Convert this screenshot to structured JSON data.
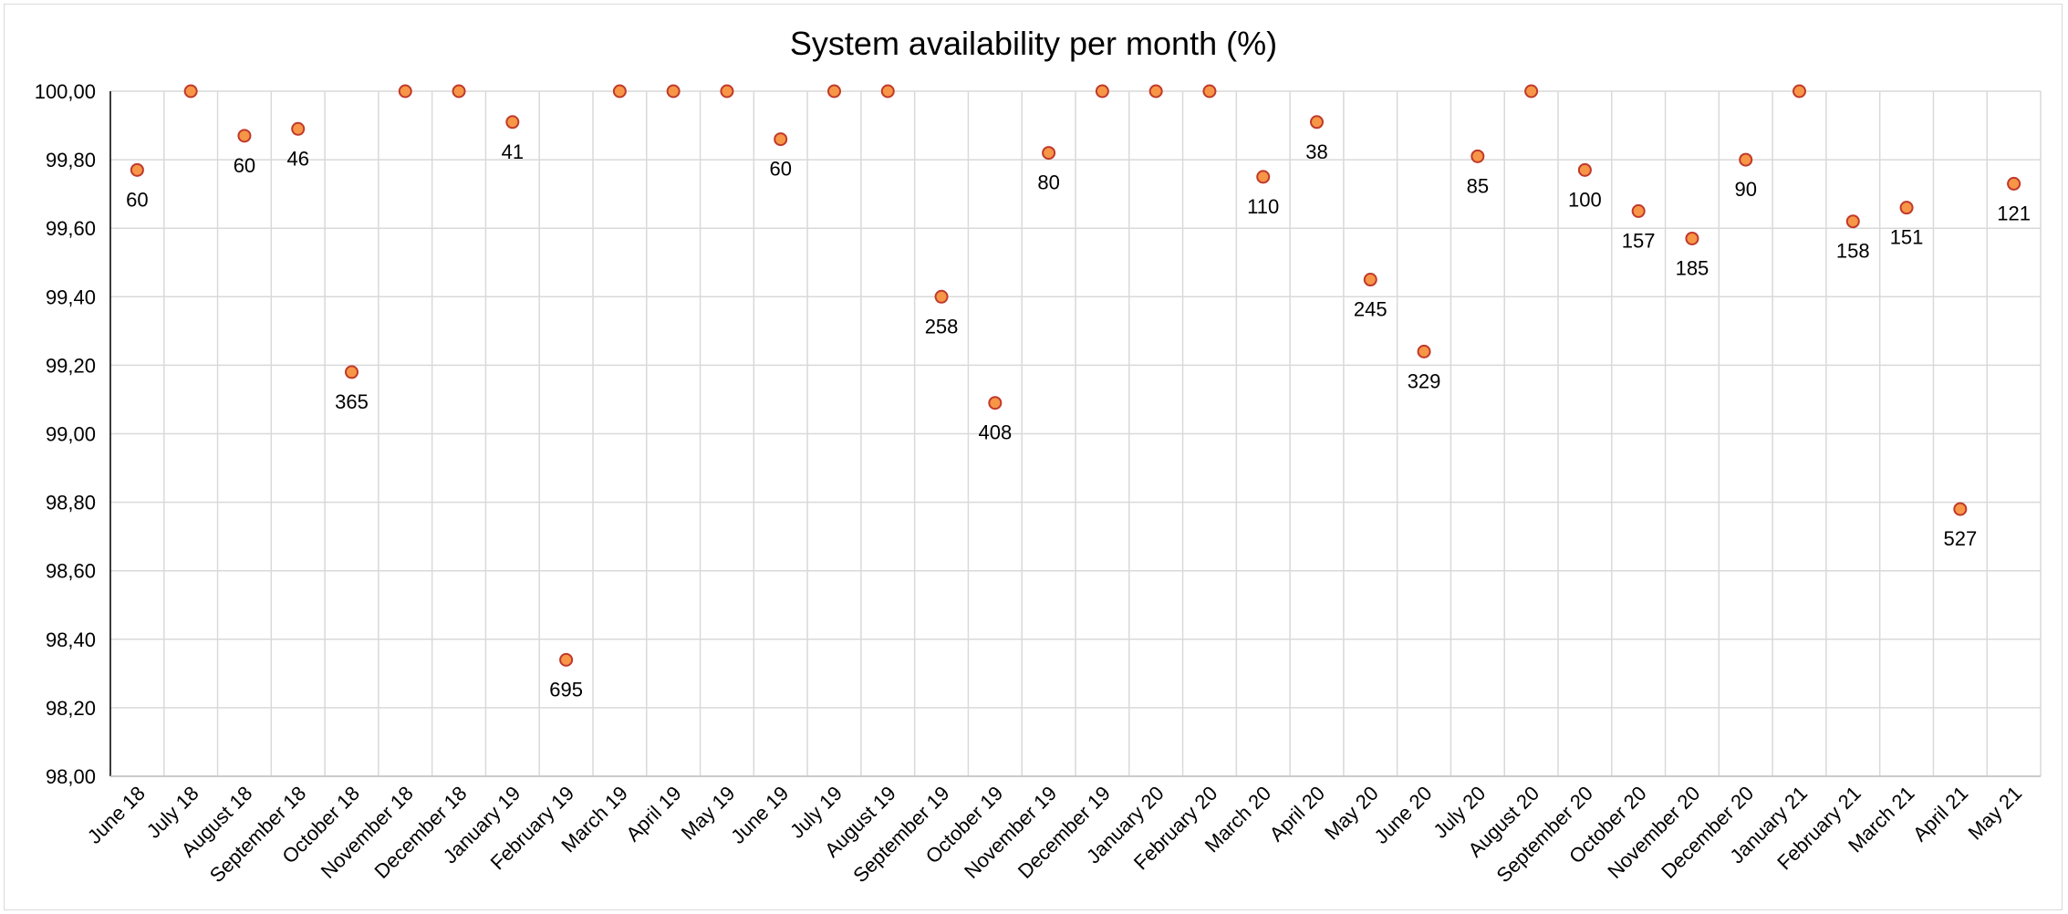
{
  "chart_data": {
    "type": "scatter",
    "title": "System availability per month (%)",
    "xlabel": "",
    "ylabel": "",
    "ylim": [
      98.0,
      100.0
    ],
    "ytick_step": 0.2,
    "ytick_labels": [
      "98,00",
      "98,20",
      "98,40",
      "98,60",
      "98,80",
      "99,00",
      "99,20",
      "99,40",
      "99,60",
      "99,80",
      "100,00"
    ],
    "grid": true,
    "legend": "none",
    "marker_fill": "#f79646",
    "marker_edge": "#c0392b",
    "categories": [
      "June 18",
      "July 18",
      "August 18",
      "September 18",
      "October 18",
      "November 18",
      "December 18",
      "January 19",
      "February 19",
      "March 19",
      "April 19",
      "May 19",
      "June 19",
      "July 19",
      "August 19",
      "September 19",
      "October 19",
      "November 19",
      "December 19",
      "January 20",
      "February 20",
      "March 20",
      "April 20",
      "May 20",
      "June 20",
      "July 20",
      "August 20",
      "September 20",
      "October 20",
      "November 20",
      "December 20",
      "January 21",
      "February 21",
      "March 21",
      "April 21",
      "May 21"
    ],
    "values": [
      99.77,
      100.0,
      99.87,
      99.89,
      99.18,
      100.0,
      100.0,
      99.91,
      98.34,
      100.0,
      100.0,
      100.0,
      99.86,
      100.0,
      100.0,
      99.4,
      99.09,
      99.82,
      100.0,
      100.0,
      100.0,
      99.75,
      99.91,
      99.45,
      99.24,
      99.81,
      100.0,
      99.77,
      99.65,
      99.57,
      99.8,
      100.0,
      99.62,
      99.66,
      98.78,
      99.73
    ],
    "data_labels": [
      "60",
      "",
      "60",
      "46",
      "365",
      "",
      "",
      "41",
      "695",
      "",
      "",
      "",
      "60",
      "",
      "",
      "258",
      "408",
      "80",
      "",
      "",
      "",
      "110",
      "38",
      "245",
      "329",
      "85",
      "",
      "100",
      "157",
      "185",
      "90",
      "",
      "158",
      "151",
      "527",
      "121"
    ]
  }
}
